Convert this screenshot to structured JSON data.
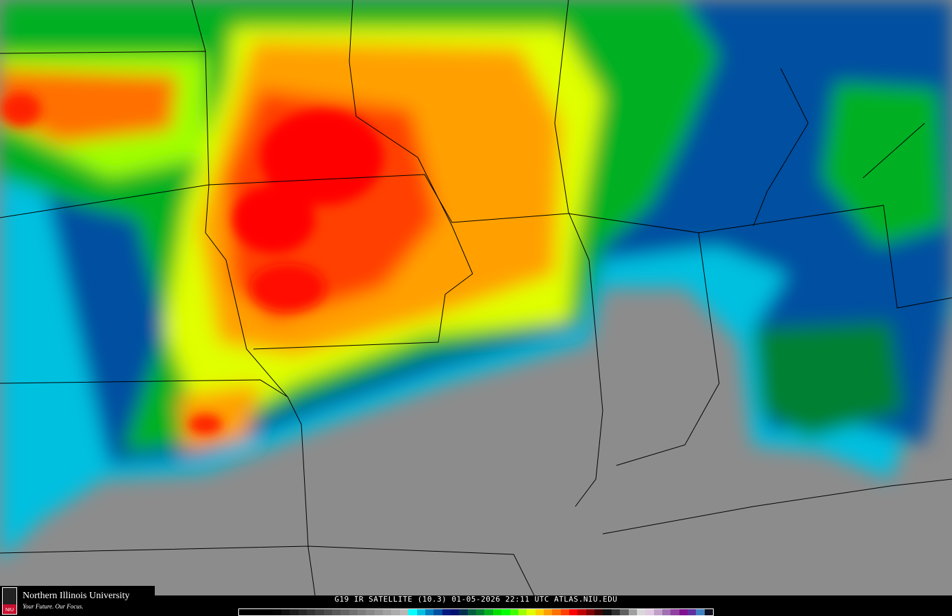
{
  "caption": "G19 IR SATELLITE (10.3) 01-05-2026 22:11 UTC  ATLAS.NIU.EDU",
  "logo": {
    "name": "Northern Illinois University",
    "tagline": "Your Future. Our Focus.",
    "seal_text": "NIU"
  },
  "colors": {
    "background": "#8c8c8c",
    "boundary": "#000000"
  },
  "colorbar": [
    "#000000",
    "#000000",
    "#000000",
    "#000000",
    "#050505",
    "#101010",
    "#1c1c1c",
    "#282828",
    "#343434",
    "#404040",
    "#4c4c4c",
    "#585858",
    "#646464",
    "#707070",
    "#7c7c7c",
    "#888888",
    "#949494",
    "#a0a0a0",
    "#acacac",
    "#b8b8b8",
    "#00ffff",
    "#00c0e0",
    "#0080c0",
    "#0050a0",
    "#001880",
    "#001070",
    "#003050",
    "#006040",
    "#008030",
    "#00b020",
    "#00e000",
    "#00ff00",
    "#40ff00",
    "#a0ff00",
    "#e0ff00",
    "#ffd000",
    "#ffa000",
    "#ff7000",
    "#ff4000",
    "#ff0000",
    "#c00000",
    "#800000",
    "#400000",
    "#101010",
    "#303030",
    "#606060",
    "#a0a0a0",
    "#d8d8d8",
    "#e0c8e0",
    "#c0a0c8",
    "#a070b0",
    "#9040a0",
    "#801090",
    "#6030a0",
    "#4080c0",
    "#101020"
  ]
}
